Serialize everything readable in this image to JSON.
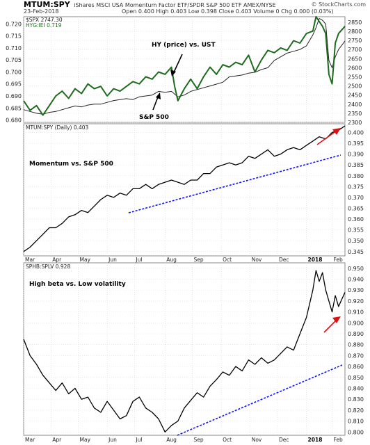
{
  "header": {
    "symbol": "MTUM:SPY",
    "description": "iShares MSCI USA Momentum Factor ETF/SPDR S&P 500 ETF",
    "exchange": "AMEX/NYSE",
    "date": "23-Feb-2018",
    "ohlc": "Open 0.400  High 0.403  Low 0.398  Close 0.403  Volume 0  Chg 0.000 (0.03%)",
    "credit": "© StockCharts.com"
  },
  "colors": {
    "hy": "#1e6b1e",
    "spx": "#222222",
    "line": "#000000",
    "trend": "#1010ff",
    "arrow": "#dd1111"
  },
  "x_labels": [
    "Mar",
    "Apr",
    "May",
    "Jun",
    "Jul",
    "Aug",
    "Sep",
    "Oct",
    "Nov",
    "Dec",
    "2018",
    "Feb"
  ],
  "chart_data": [
    {
      "type": "line",
      "legend": [
        "$SPX 2747.30",
        "HYG:IEI 0.719"
      ],
      "annotations": [
        "HY (price) vs. UST",
        "S&P 500"
      ],
      "left_ticks": [
        "0.720",
        "0.715",
        "0.710",
        "0.705",
        "0.700",
        "0.695",
        "0.690",
        "0.685",
        "0.680"
      ],
      "right_ticks": [
        "2850",
        "2800",
        "2750",
        "2700",
        "2650",
        "2600",
        "2550",
        "2500",
        "2450",
        "2400",
        "2350",
        "2300"
      ],
      "ylim_left": [
        0.679,
        0.723
      ],
      "ylim_right": [
        2300,
        2880
      ],
      "series": [
        {
          "name": "HYG:IEI",
          "x": [
            0,
            0.02,
            0.04,
            0.06,
            0.08,
            0.1,
            0.12,
            0.14,
            0.16,
            0.18,
            0.2,
            0.22,
            0.24,
            0.26,
            0.28,
            0.3,
            0.32,
            0.34,
            0.36,
            0.38,
            0.4,
            0.42,
            0.44,
            0.46,
            0.47,
            0.48,
            0.5,
            0.52,
            0.54,
            0.56,
            0.58,
            0.6,
            0.62,
            0.64,
            0.66,
            0.68,
            0.7,
            0.72,
            0.74,
            0.76,
            0.78,
            0.8,
            0.82,
            0.84,
            0.86,
            0.88,
            0.9,
            0.91,
            0.92,
            0.93,
            0.94,
            0.95,
            0.96,
            0.97,
            0.98,
            1.0
          ],
          "values": [
            0.688,
            0.684,
            0.686,
            0.682,
            0.686,
            0.69,
            0.692,
            0.689,
            0.693,
            0.691,
            0.695,
            0.693,
            0.694,
            0.69,
            0.693,
            0.692,
            0.694,
            0.696,
            0.695,
            0.698,
            0.697,
            0.7,
            0.699,
            0.702,
            0.694,
            0.688,
            0.693,
            0.697,
            0.693,
            0.698,
            0.702,
            0.699,
            0.703,
            0.702,
            0.704,
            0.703,
            0.707,
            0.7,
            0.705,
            0.709,
            0.708,
            0.71,
            0.709,
            0.713,
            0.712,
            0.716,
            0.717,
            0.723,
            0.721,
            0.719,
            0.716,
            0.699,
            0.695,
            0.712,
            0.716,
            0.719
          ]
        },
        {
          "name": "$SPX",
          "x": [
            0,
            0.02,
            0.04,
            0.06,
            0.08,
            0.1,
            0.12,
            0.14,
            0.16,
            0.18,
            0.2,
            0.22,
            0.24,
            0.26,
            0.28,
            0.3,
            0.32,
            0.34,
            0.36,
            0.38,
            0.4,
            0.42,
            0.44,
            0.46,
            0.48,
            0.5,
            0.52,
            0.54,
            0.56,
            0.58,
            0.6,
            0.62,
            0.64,
            0.66,
            0.68,
            0.7,
            0.72,
            0.74,
            0.76,
            0.78,
            0.8,
            0.82,
            0.84,
            0.86,
            0.88,
            0.9,
            0.91,
            0.92,
            0.93,
            0.94,
            0.95,
            0.96,
            0.97,
            0.98,
            1.0
          ],
          "values": [
            2370,
            2360,
            2350,
            2345,
            2355,
            2360,
            2370,
            2380,
            2390,
            2385,
            2395,
            2400,
            2400,
            2410,
            2420,
            2425,
            2430,
            2425,
            2440,
            2445,
            2450,
            2470,
            2465,
            2470,
            2440,
            2450,
            2470,
            2480,
            2490,
            2500,
            2510,
            2520,
            2550,
            2555,
            2560,
            2570,
            2575,
            2590,
            2600,
            2640,
            2660,
            2680,
            2690,
            2700,
            2720,
            2780,
            2820,
            2870,
            2860,
            2840,
            2640,
            2600,
            2660,
            2700,
            2747
          ]
        }
      ]
    },
    {
      "type": "line",
      "legend": [
        "MTUM:SPY (Daily) 0.403"
      ],
      "annotations": [
        "Momentum vs. S&P 500"
      ],
      "right_ticks": [
        "0.400",
        "0.395",
        "0.390",
        "0.385",
        "0.380",
        "0.375",
        "0.370",
        "0.365",
        "0.360",
        "0.355",
        "0.350",
        "0.345"
      ],
      "ylim": [
        0.343,
        0.404
      ],
      "series": [
        {
          "name": "MTUM:SPY",
          "x": [
            0,
            0.02,
            0.04,
            0.06,
            0.08,
            0.1,
            0.12,
            0.14,
            0.16,
            0.18,
            0.2,
            0.22,
            0.24,
            0.26,
            0.28,
            0.3,
            0.32,
            0.34,
            0.36,
            0.38,
            0.4,
            0.42,
            0.44,
            0.46,
            0.48,
            0.5,
            0.52,
            0.54,
            0.56,
            0.58,
            0.6,
            0.62,
            0.64,
            0.66,
            0.68,
            0.7,
            0.72,
            0.74,
            0.76,
            0.78,
            0.8,
            0.82,
            0.84,
            0.86,
            0.88,
            0.9,
            0.92,
            0.94,
            0.96,
            0.98,
            1.0
          ],
          "values": [
            0.345,
            0.347,
            0.35,
            0.353,
            0.356,
            0.356,
            0.358,
            0.361,
            0.362,
            0.364,
            0.363,
            0.366,
            0.369,
            0.371,
            0.37,
            0.372,
            0.371,
            0.374,
            0.374,
            0.376,
            0.374,
            0.376,
            0.377,
            0.378,
            0.377,
            0.376,
            0.378,
            0.378,
            0.381,
            0.381,
            0.384,
            0.385,
            0.386,
            0.385,
            0.386,
            0.389,
            0.388,
            0.39,
            0.392,
            0.389,
            0.39,
            0.392,
            0.393,
            0.392,
            0.394,
            0.396,
            0.398,
            0.397,
            0.4,
            0.401,
            0.403
          ]
        }
      ]
    },
    {
      "type": "line",
      "legend": [
        "SPHB:SPLV 0.928"
      ],
      "annotations": [
        "High beta vs. Low volatility"
      ],
      "right_ticks": [
        "0.950",
        "0.940",
        "0.930",
        "0.920",
        "0.910",
        "0.900",
        "0.890",
        "0.880",
        "0.870",
        "0.860",
        "0.850",
        "0.840",
        "0.830",
        "0.820",
        "0.810",
        "0.800"
      ],
      "ylim": [
        0.797,
        0.955
      ],
      "series": [
        {
          "name": "SPHB:SPLV",
          "x": [
            0,
            0.02,
            0.04,
            0.06,
            0.08,
            0.1,
            0.12,
            0.14,
            0.16,
            0.18,
            0.2,
            0.22,
            0.24,
            0.26,
            0.28,
            0.3,
            0.32,
            0.34,
            0.36,
            0.38,
            0.4,
            0.42,
            0.44,
            0.46,
            0.48,
            0.5,
            0.52,
            0.54,
            0.56,
            0.58,
            0.6,
            0.62,
            0.64,
            0.66,
            0.68,
            0.7,
            0.72,
            0.74,
            0.76,
            0.78,
            0.8,
            0.82,
            0.84,
            0.86,
            0.88,
            0.9,
            0.91,
            0.92,
            0.93,
            0.94,
            0.95,
            0.96,
            0.97,
            0.98,
            1.0
          ],
          "values": [
            0.885,
            0.87,
            0.862,
            0.852,
            0.845,
            0.838,
            0.845,
            0.835,
            0.84,
            0.83,
            0.832,
            0.822,
            0.818,
            0.828,
            0.82,
            0.812,
            0.815,
            0.828,
            0.832,
            0.822,
            0.818,
            0.812,
            0.8,
            0.806,
            0.81,
            0.822,
            0.829,
            0.836,
            0.832,
            0.842,
            0.848,
            0.855,
            0.852,
            0.86,
            0.856,
            0.866,
            0.862,
            0.868,
            0.863,
            0.866,
            0.872,
            0.878,
            0.875,
            0.89,
            0.905,
            0.93,
            0.948,
            0.938,
            0.946,
            0.93,
            0.92,
            0.91,
            0.925,
            0.915,
            0.928
          ]
        }
      ]
    }
  ]
}
